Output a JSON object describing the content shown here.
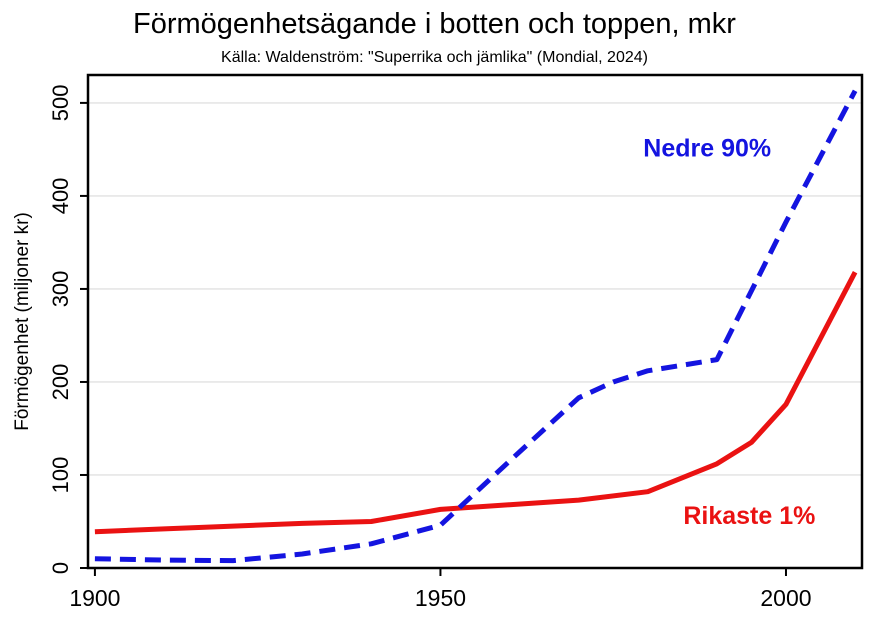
{
  "header": {
    "title": "Förmögenhetsägande i botten och toppen, mkr",
    "subtitle": "Källa: Waldenström: \"Superrika och jämlika\" (Mondial, 2024)"
  },
  "chart_data": {
    "type": "line",
    "title": "Förmögenhetsägande i botten och toppen, mkr",
    "subtitle": "Källa: Waldenström: \"Superrika och jämlika\" (Mondial, 2024)",
    "xlabel": "",
    "ylabel": "Förmögenhet (miljoner kr)",
    "xlim": [
      1899,
      2011
    ],
    "ylim": [
      0,
      530
    ],
    "xticks": [
      1900,
      1950,
      2000
    ],
    "yticks": [
      0,
      100,
      200,
      300,
      400,
      500
    ],
    "grid": "horizontal",
    "grid_color": "#e6e6e6",
    "axis_color": "#000000",
    "legend_position": "inline-annotations",
    "series": [
      {
        "name": "Rikaste 1%",
        "color": "#ea1212",
        "style": "solid",
        "points": [
          [
            1900,
            39
          ],
          [
            1910,
            42
          ],
          [
            1920,
            45
          ],
          [
            1930,
            48
          ],
          [
            1940,
            50
          ],
          [
            1950,
            63
          ],
          [
            1960,
            68
          ],
          [
            1970,
            73
          ],
          [
            1980,
            82
          ],
          [
            1990,
            112
          ],
          [
            1995,
            135
          ],
          [
            2000,
            176
          ],
          [
            2010,
            318
          ]
        ]
      },
      {
        "name": "Nedre 90%",
        "color": "#1414e0",
        "style": "dashed",
        "points": [
          [
            1900,
            10
          ],
          [
            1910,
            8.5
          ],
          [
            1920,
            8
          ],
          [
            1930,
            15
          ],
          [
            1940,
            26
          ],
          [
            1950,
            46
          ],
          [
            1960,
            115
          ],
          [
            1970,
            183
          ],
          [
            1975,
            200
          ],
          [
            1980,
            212
          ],
          [
            1990,
            224
          ],
          [
            2000,
            372
          ],
          [
            2010,
            513
          ]
        ]
      }
    ],
    "annotations": [
      {
        "text": "Nedre 90%",
        "x": 1988.6,
        "y": 452,
        "color": "#1414e0"
      },
      {
        "text": "Rikaste 1%",
        "x": 1994.7,
        "y": 57,
        "color": "#ea1212"
      }
    ]
  }
}
